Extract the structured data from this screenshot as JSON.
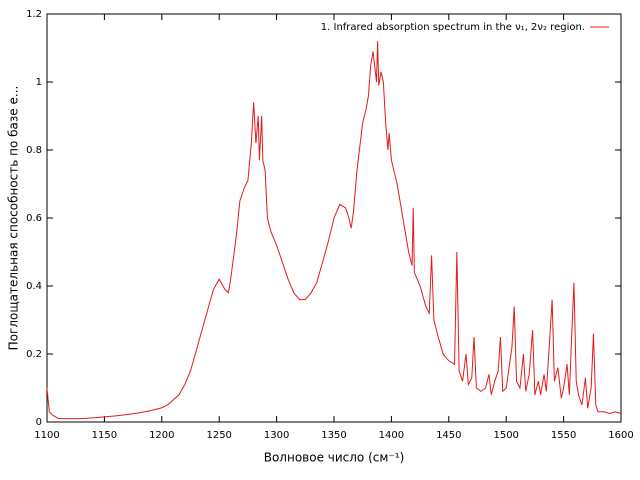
{
  "chart_data": {
    "type": "line",
    "legend": "top-right",
    "xlabel": "Волновое число (см⁻¹)",
    "ylabel": "Поглощательная способность по базе е...",
    "xlim": [
      1100,
      1600
    ],
    "ylim": [
      0,
      1.2
    ],
    "xticks": [
      1100,
      1150,
      1200,
      1250,
      1300,
      1350,
      1400,
      1450,
      1500,
      1550,
      1600
    ],
    "yticks": [
      0,
      0.2,
      0.4,
      0.6,
      0.8,
      1,
      1.2
    ],
    "x": [
      1100,
      1102,
      1105,
      1110,
      1120,
      1130,
      1140,
      1150,
      1160,
      1170,
      1180,
      1190,
      1200,
      1205,
      1210,
      1215,
      1220,
      1225,
      1230,
      1235,
      1240,
      1245,
      1250,
      1255,
      1258,
      1260,
      1265,
      1268,
      1272,
      1275,
      1278,
      1280,
      1282,
      1284,
      1285,
      1287,
      1288,
      1290,
      1292,
      1295,
      1300,
      1305,
      1310,
      1315,
      1320,
      1325,
      1330,
      1335,
      1340,
      1345,
      1350,
      1355,
      1360,
      1363,
      1365,
      1367,
      1370,
      1375,
      1378,
      1380,
      1382,
      1384,
      1386,
      1387,
      1388,
      1389,
      1391,
      1393,
      1395,
      1397,
      1398,
      1400,
      1405,
      1410,
      1415,
      1418,
      1419,
      1420,
      1425,
      1430,
      1433,
      1435,
      1437,
      1440,
      1445,
      1450,
      1455,
      1457,
      1459,
      1462,
      1465,
      1467,
      1470,
      1472,
      1474,
      1478,
      1482,
      1485,
      1487,
      1490,
      1493,
      1495,
      1497,
      1500,
      1505,
      1507,
      1509,
      1512,
      1515,
      1517,
      1520,
      1523,
      1525,
      1528,
      1530,
      1533,
      1535,
      1538,
      1540,
      1542,
      1545,
      1548,
      1550,
      1553,
      1555,
      1557,
      1559,
      1561,
      1563,
      1566,
      1569,
      1571,
      1574,
      1576,
      1578,
      1580,
      1585,
      1590,
      1595,
      1600
    ],
    "series": [
      {
        "name": "1. Infrared absorption spectrum in the ν₁, 2ν₂ region.",
        "color": "#e41a1c",
        "values": [
          0.1,
          0.03,
          0.02,
          0.01,
          0.01,
          0.01,
          0.012,
          0.015,
          0.018,
          0.022,
          0.027,
          0.033,
          0.042,
          0.05,
          0.065,
          0.08,
          0.11,
          0.15,
          0.21,
          0.27,
          0.33,
          0.39,
          0.42,
          0.39,
          0.38,
          0.42,
          0.55,
          0.65,
          0.69,
          0.71,
          0.82,
          0.94,
          0.82,
          0.9,
          0.77,
          0.9,
          0.77,
          0.74,
          0.6,
          0.56,
          0.52,
          0.47,
          0.42,
          0.38,
          0.36,
          0.36,
          0.38,
          0.41,
          0.47,
          0.53,
          0.6,
          0.64,
          0.63,
          0.6,
          0.57,
          0.62,
          0.74,
          0.88,
          0.92,
          0.96,
          1.05,
          1.09,
          1.03,
          1.0,
          1.12,
          0.99,
          1.03,
          1.0,
          0.88,
          0.8,
          0.85,
          0.77,
          0.7,
          0.6,
          0.5,
          0.46,
          0.63,
          0.44,
          0.4,
          0.34,
          0.32,
          0.49,
          0.3,
          0.26,
          0.2,
          0.18,
          0.17,
          0.5,
          0.15,
          0.12,
          0.2,
          0.11,
          0.13,
          0.25,
          0.1,
          0.09,
          0.1,
          0.14,
          0.08,
          0.12,
          0.15,
          0.25,
          0.09,
          0.1,
          0.22,
          0.34,
          0.12,
          0.1,
          0.2,
          0.09,
          0.14,
          0.27,
          0.08,
          0.12,
          0.08,
          0.14,
          0.09,
          0.25,
          0.36,
          0.12,
          0.16,
          0.07,
          0.1,
          0.17,
          0.08,
          0.25,
          0.41,
          0.12,
          0.08,
          0.05,
          0.13,
          0.04,
          0.1,
          0.26,
          0.05,
          0.03,
          0.03,
          0.025,
          0.03,
          0.025
        ]
      }
    ]
  }
}
